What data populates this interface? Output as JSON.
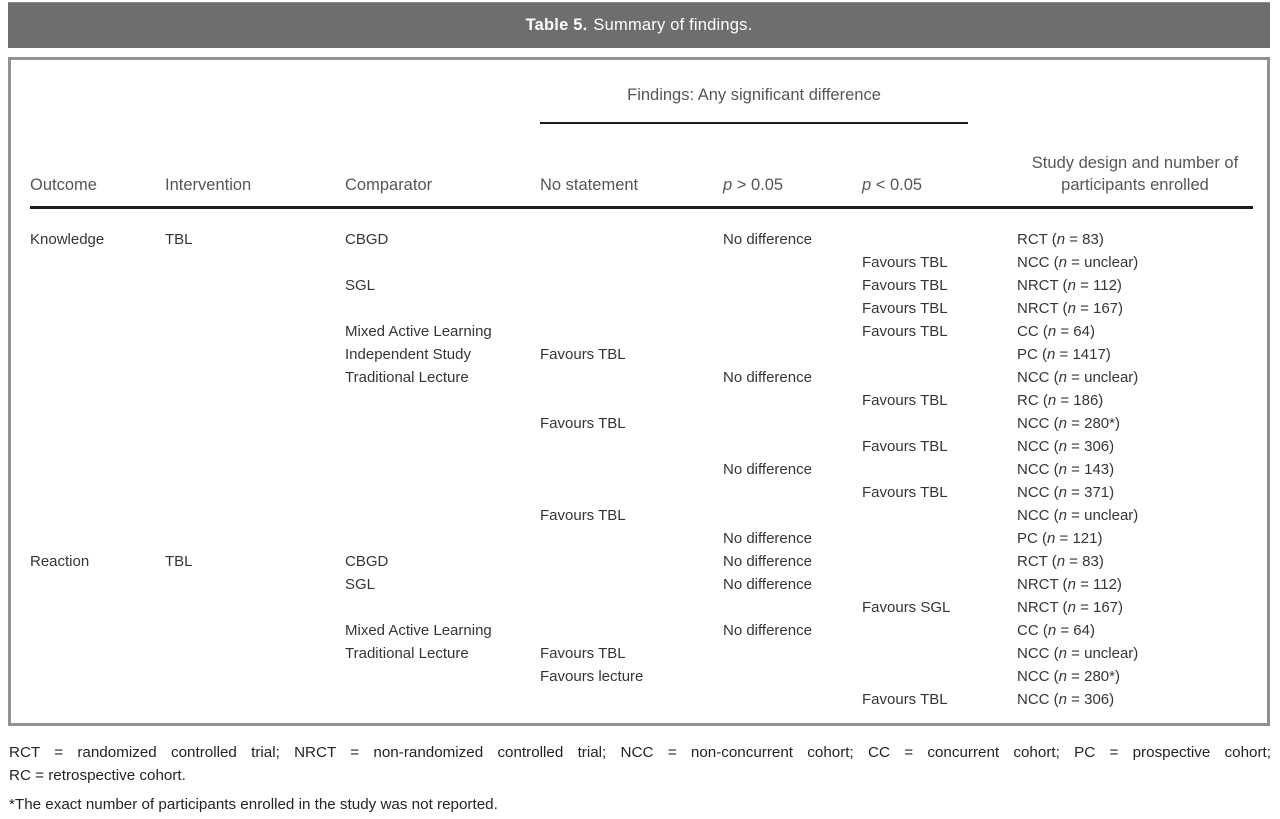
{
  "title": {
    "label": "Table 5.",
    "rest": "Summary of findings."
  },
  "findings_span_header": "Findings: Any significant difference",
  "table": {
    "columns": [
      "Outcome",
      "Intervention",
      "Comparator",
      "No statement",
      "p > 0.05",
      "p < 0.05",
      "Study design and number of participants enrolled"
    ],
    "rows": [
      [
        "Knowledge",
        "TBL",
        "CBGD",
        "",
        "No difference",
        "",
        "RCT (n = 83)"
      ],
      [
        "",
        "",
        "",
        "",
        "",
        "Favours TBL",
        "NCC (n = unclear)"
      ],
      [
        "",
        "",
        "SGL",
        "",
        "",
        "Favours TBL",
        "NRCT (n = 112)"
      ],
      [
        "",
        "",
        "",
        "",
        "",
        "Favours TBL",
        "NRCT (n = 167)"
      ],
      [
        "",
        "",
        "Mixed Active Learning",
        "",
        "",
        "Favours TBL",
        "CC (n = 64)"
      ],
      [
        "",
        "",
        "Independent Study",
        "Favours TBL",
        "",
        "",
        "PC (n = 1417)"
      ],
      [
        "",
        "",
        "Traditional Lecture",
        "",
        "No difference",
        "",
        "NCC (n = unclear)"
      ],
      [
        "",
        "",
        "",
        "",
        "",
        "Favours TBL",
        "RC (n = 186)"
      ],
      [
        "",
        "",
        "",
        "Favours TBL",
        "",
        "",
        "NCC (n = 280*)"
      ],
      [
        "",
        "",
        "",
        "",
        "",
        "Favours TBL",
        "NCC (n = 306)"
      ],
      [
        "",
        "",
        "",
        "",
        "No difference",
        "",
        "NCC (n = 143)"
      ],
      [
        "",
        "",
        "",
        "",
        "",
        "Favours TBL",
        "NCC (n = 371)"
      ],
      [
        "",
        "",
        "",
        "Favours TBL",
        "",
        "",
        "NCC (n = unclear)"
      ],
      [
        "",
        "",
        "",
        "",
        "No difference",
        "",
        "PC (n = 121)"
      ],
      [
        "Reaction",
        "TBL",
        "CBGD",
        "",
        "No difference",
        "",
        "RCT (n = 83)"
      ],
      [
        "",
        "",
        "SGL",
        "",
        "No difference",
        "",
        "NRCT (n = 112)"
      ],
      [
        "",
        "",
        "",
        "",
        "",
        "Favours SGL",
        "NRCT (n = 167)"
      ],
      [
        "",
        "",
        "Mixed Active Learning",
        "",
        "No difference",
        "",
        "CC (n = 64)"
      ],
      [
        "",
        "",
        "Traditional Lecture",
        "Favours TBL",
        "",
        "",
        "NCC (n = unclear)"
      ],
      [
        "",
        "",
        "",
        "Favours lecture",
        "",
        "",
        "NCC (n = 280*)"
      ],
      [
        "",
        "",
        "",
        "",
        "",
        "Favours TBL",
        "NCC (n = 306)"
      ]
    ]
  },
  "footnotes": {
    "abbreviation_lines": [
      "RCT = randomized controlled trial; NRCT = non-randomized controlled trial; NCC = non-concurrent cohort; CC = concurrent cohort; PC = prospective cohort;",
      "RC = retrospective cohort."
    ],
    "asterisk": "*The exact number of participants enrolled in the study was not reported."
  },
  "colors": {
    "title_bar": "#6e6e70",
    "border": "#919195",
    "text": "#353537",
    "header_text": "#56565a",
    "rule": "#1c1c1e",
    "footnote_text": "#242426"
  }
}
